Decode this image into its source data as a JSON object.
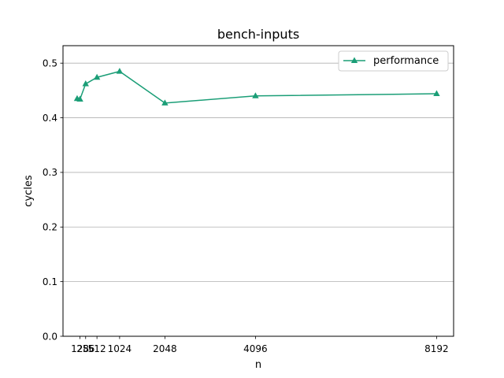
{
  "chart_data": {
    "type": "line",
    "title": "bench-inputs",
    "xlabel": "n",
    "ylabel": "cycles",
    "x_ticks": [
      128,
      256,
      512,
      1024,
      2048,
      4096,
      8192
    ],
    "y_ticks": [
      0.0,
      0.1,
      0.2,
      0.3,
      0.4,
      0.5
    ],
    "xlim": [
      -256,
      8576
    ],
    "ylim": [
      0.0,
      0.532
    ],
    "grid": "y",
    "legend_position": "top-right",
    "series": [
      {
        "name": "performance",
        "color": "#1b9e77",
        "marker": "triangle-up",
        "x": [
          64,
          128,
          256,
          512,
          1024,
          2048,
          4096,
          8192
        ],
        "y": [
          0.435,
          0.434,
          0.462,
          0.474,
          0.485,
          0.427,
          0.44,
          0.444
        ]
      }
    ]
  }
}
